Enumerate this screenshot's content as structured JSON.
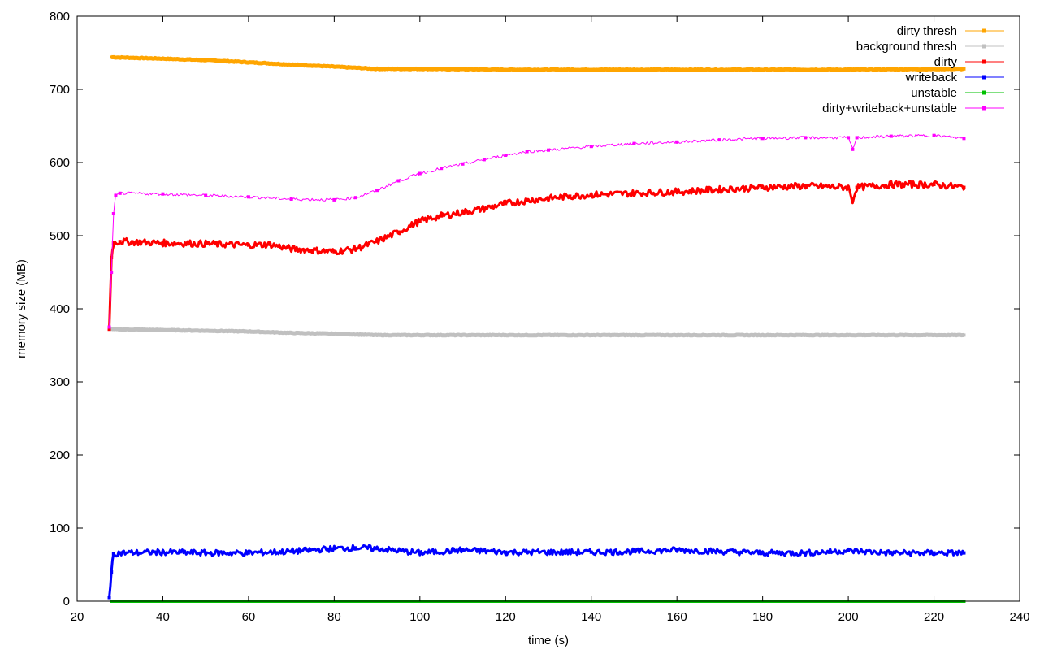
{
  "chart_data": {
    "type": "line",
    "title": "",
    "xlabel": "time (s)",
    "ylabel": "memory size (MB)",
    "xlim": [
      20,
      240
    ],
    "ylim": [
      0,
      800
    ],
    "xticks": [
      20,
      40,
      60,
      80,
      100,
      120,
      140,
      160,
      180,
      200,
      220,
      240
    ],
    "yticks": [
      0,
      100,
      200,
      300,
      400,
      500,
      600,
      700,
      800
    ],
    "grid": false,
    "legend_position": "top-right",
    "series": [
      {
        "name": "dirty thresh",
        "color": "#ffa500",
        "marker": "square-open",
        "points": [
          [
            28,
            744
          ],
          [
            40,
            742
          ],
          [
            50,
            740
          ],
          [
            60,
            737
          ],
          [
            70,
            734
          ],
          [
            80,
            731
          ],
          [
            90,
            728
          ],
          [
            100,
            728
          ],
          [
            120,
            727
          ],
          [
            140,
            727
          ],
          [
            160,
            727
          ],
          [
            180,
            727
          ],
          [
            200,
            727
          ],
          [
            227,
            728
          ]
        ]
      },
      {
        "name": "background thresh",
        "color": "#c0c0c0",
        "marker": "star",
        "points": [
          [
            28,
            372
          ],
          [
            40,
            371
          ],
          [
            50,
            370
          ],
          [
            60,
            369
          ],
          [
            70,
            367
          ],
          [
            80,
            366
          ],
          [
            90,
            364
          ],
          [
            100,
            364
          ],
          [
            140,
            364
          ],
          [
            180,
            364
          ],
          [
            227,
            364
          ]
        ]
      },
      {
        "name": "dirty",
        "color": "#ff0000",
        "marker": "square-filled",
        "points": [
          [
            27.5,
            372
          ],
          [
            28,
            470
          ],
          [
            28.5,
            490
          ],
          [
            30,
            492
          ],
          [
            40,
            490
          ],
          [
            50,
            489
          ],
          [
            60,
            487
          ],
          [
            65,
            488
          ],
          [
            70,
            482
          ],
          [
            75,
            480
          ],
          [
            80,
            478
          ],
          [
            85,
            482
          ],
          [
            90,
            492
          ],
          [
            95,
            505
          ],
          [
            100,
            520
          ],
          [
            105,
            527
          ],
          [
            110,
            532
          ],
          [
            115,
            537
          ],
          [
            120,
            544
          ],
          [
            125,
            548
          ],
          [
            130,
            551
          ],
          [
            135,
            554
          ],
          [
            140,
            556
          ],
          [
            150,
            558
          ],
          [
            160,
            560
          ],
          [
            170,
            563
          ],
          [
            180,
            566
          ],
          [
            190,
            568
          ],
          [
            200,
            566
          ],
          [
            201,
            548
          ],
          [
            202,
            566
          ],
          [
            210,
            570
          ],
          [
            220,
            570
          ],
          [
            227,
            566
          ]
        ]
      },
      {
        "name": "writeback",
        "color": "#0000ff",
        "marker": "circle-filled",
        "points": [
          [
            27.5,
            5
          ],
          [
            28,
            40
          ],
          [
            28.5,
            65
          ],
          [
            30,
            66
          ],
          [
            40,
            67
          ],
          [
            50,
            66
          ],
          [
            60,
            66
          ],
          [
            70,
            68
          ],
          [
            80,
            72
          ],
          [
            85,
            73
          ],
          [
            90,
            72
          ],
          [
            100,
            66
          ],
          [
            110,
            70
          ],
          [
            120,
            67
          ],
          [
            130,
            67
          ],
          [
            140,
            67
          ],
          [
            150,
            68
          ],
          [
            160,
            70
          ],
          [
            170,
            68
          ],
          [
            180,
            66
          ],
          [
            190,
            66
          ],
          [
            200,
            69
          ],
          [
            210,
            66
          ],
          [
            220,
            66
          ],
          [
            227,
            66
          ]
        ]
      },
      {
        "name": "unstable",
        "color": "#00c000",
        "marker": "circle-open",
        "points": [
          [
            28,
            0
          ],
          [
            60,
            0
          ],
          [
            100,
            0
          ],
          [
            140,
            0
          ],
          [
            180,
            0
          ],
          [
            227,
            0
          ]
        ]
      },
      {
        "name": "dirty+writeback+unstable",
        "color": "#ff00ff",
        "marker": "plus",
        "points": [
          [
            27.5,
            375
          ],
          [
            28,
            450
          ],
          [
            28.5,
            530
          ],
          [
            29,
            555
          ],
          [
            30,
            558
          ],
          [
            40,
            557
          ],
          [
            50,
            555
          ],
          [
            60,
            553
          ],
          [
            70,
            550
          ],
          [
            80,
            549
          ],
          [
            85,
            552
          ],
          [
            90,
            562
          ],
          [
            95,
            575
          ],
          [
            100,
            585
          ],
          [
            105,
            592
          ],
          [
            110,
            598
          ],
          [
            115,
            604
          ],
          [
            120,
            610
          ],
          [
            125,
            615
          ],
          [
            130,
            617
          ],
          [
            140,
            622
          ],
          [
            150,
            626
          ],
          [
            160,
            628
          ],
          [
            170,
            631
          ],
          [
            180,
            633
          ],
          [
            190,
            634
          ],
          [
            200,
            634
          ],
          [
            201,
            618
          ],
          [
            202,
            634
          ],
          [
            210,
            636
          ],
          [
            220,
            637
          ],
          [
            227,
            633
          ]
        ]
      }
    ]
  }
}
